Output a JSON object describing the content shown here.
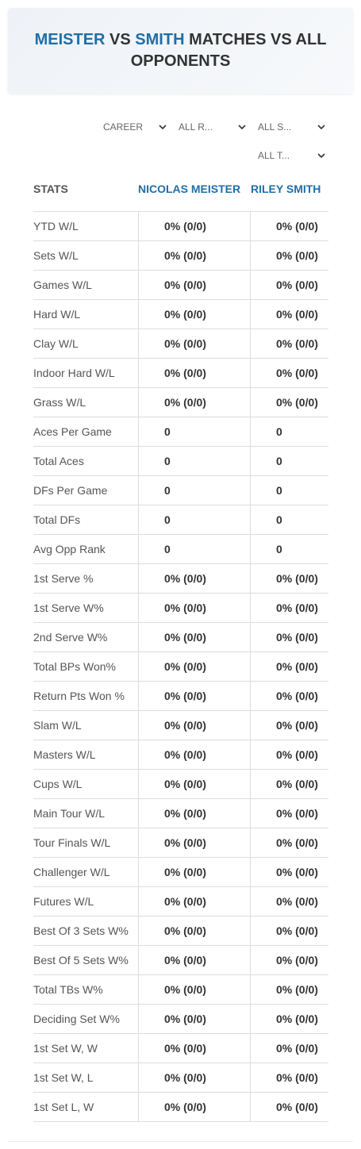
{
  "header": {
    "title_parts": [
      "MEISTER",
      "VS",
      "SMITH",
      "MATCHES VS ALL OPPONENTS"
    ]
  },
  "filters": [
    "CAREER",
    "ALL R...",
    "ALL S...",
    "ALL T..."
  ],
  "table": {
    "columns": [
      "STATS",
      "NICOLAS MEISTER",
      "RILEY SMITH"
    ],
    "rows": [
      [
        "YTD W/L",
        "0% (0/0)",
        "0% (0/0)"
      ],
      [
        "Sets W/L",
        "0% (0/0)",
        "0% (0/0)"
      ],
      [
        "Games W/L",
        "0% (0/0)",
        "0% (0/0)"
      ],
      [
        "Hard W/L",
        "0% (0/0)",
        "0% (0/0)"
      ],
      [
        "Clay W/L",
        "0% (0/0)",
        "0% (0/0)"
      ],
      [
        "Indoor Hard W/L",
        "0% (0/0)",
        "0% (0/0)"
      ],
      [
        "Grass W/L",
        "0% (0/0)",
        "0% (0/0)"
      ],
      [
        "Aces Per Game",
        0,
        0
      ],
      [
        "Total Aces",
        0,
        0
      ],
      [
        "DFs Per Game",
        0,
        0
      ],
      [
        "Total DFs",
        0,
        0
      ],
      [
        "Avg Opp Rank",
        0,
        0
      ],
      [
        "1st Serve %",
        "0% (0/0)",
        "0% (0/0)"
      ],
      [
        "1st Serve W%",
        "0% (0/0)",
        "0% (0/0)"
      ],
      [
        "2nd Serve W%",
        "0% (0/0)",
        "0% (0/0)"
      ],
      [
        "Total BPs Won%",
        "0% (0/0)",
        "0% (0/0)"
      ],
      [
        "Return Pts Won %",
        "0% (0/0)",
        "0% (0/0)"
      ],
      [
        "Slam W/L",
        "0% (0/0)",
        "0% (0/0)"
      ],
      [
        "Masters W/L",
        "0% (0/0)",
        "0% (0/0)"
      ],
      [
        "Cups W/L",
        "0% (0/0)",
        "0% (0/0)"
      ],
      [
        "Main Tour W/L",
        "0% (0/0)",
        "0% (0/0)"
      ],
      [
        "Tour Finals W/L",
        "0% (0/0)",
        "0% (0/0)"
      ],
      [
        "Challenger W/L",
        "0% (0/0)",
        "0% (0/0)"
      ],
      [
        "Futures W/L",
        "0% (0/0)",
        "0% (0/0)"
      ],
      [
        "Best Of 3 Sets W%",
        "0% (0/0)",
        "0% (0/0)"
      ],
      [
        "Best Of 5 Sets W%",
        "0% (0/0)",
        "0% (0/0)"
      ],
      [
        "Total TBs W%",
        "0% (0/0)",
        "0% (0/0)"
      ],
      [
        "Deciding Set W%",
        "0% (0/0)",
        "0% (0/0)"
      ],
      [
        "1st Set W, W",
        "0% (0/0)",
        "0% (0/0)"
      ],
      [
        "1st Set W, L",
        "0% (0/0)",
        "0% (0/0)"
      ],
      [
        "1st Set L, W",
        "0% (0/0)",
        "0% (0/0)"
      ]
    ]
  }
}
